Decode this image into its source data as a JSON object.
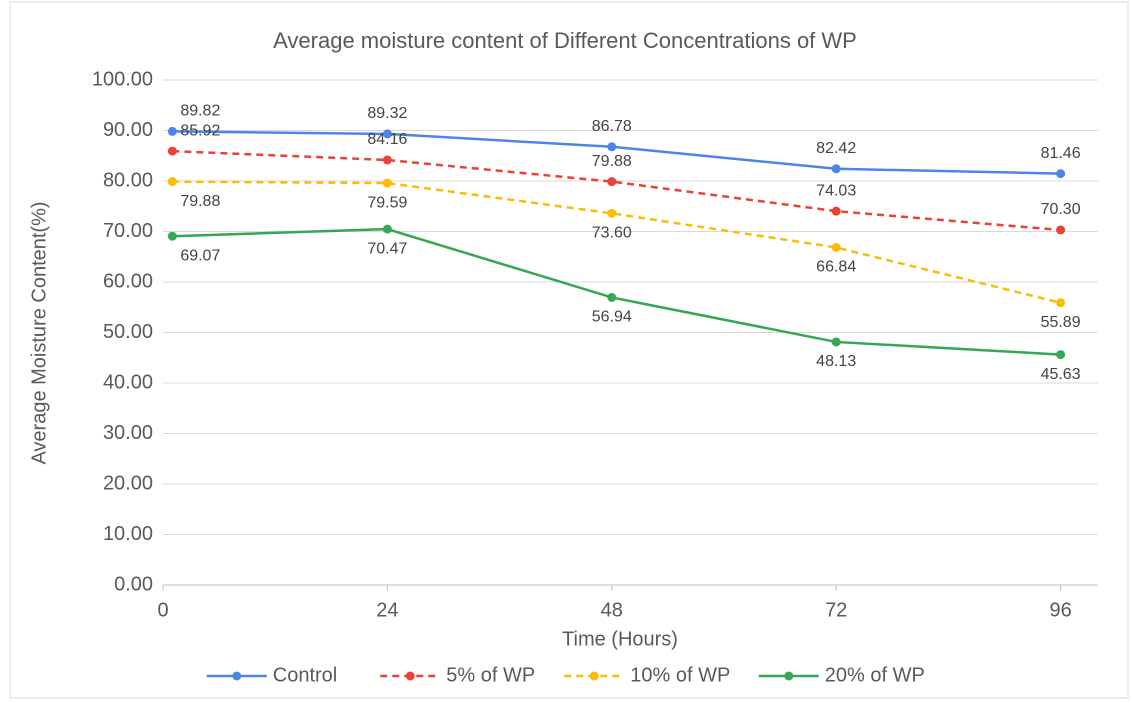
{
  "chart_data": {
    "type": "line",
    "title": "Average moisture content of Different Concentrations of WP",
    "x_label": "Time (Hours)",
    "y_label": "Average Moisture Content(%)",
    "x": [
      1,
      24,
      48,
      72,
      96
    ],
    "xlim": [
      0,
      100
    ],
    "xticks": [
      0,
      24,
      48,
      72,
      96
    ],
    "ylim": [
      0,
      100
    ],
    "yticks": [
      {
        "value": 0,
        "label": "0.00"
      },
      {
        "value": 10,
        "label": "10.00"
      },
      {
        "value": 20,
        "label": "20.00"
      },
      {
        "value": 30,
        "label": "30.00"
      },
      {
        "value": 40,
        "label": "40.00"
      },
      {
        "value": 50,
        "label": "50.00"
      },
      {
        "value": 60,
        "label": "60.00"
      },
      {
        "value": 70,
        "label": "70.00"
      },
      {
        "value": 80,
        "label": "80.00"
      },
      {
        "value": 90,
        "label": "90.00"
      },
      {
        "value": 100,
        "label": "100.00"
      }
    ],
    "grid": true,
    "legend": "bottom",
    "series": [
      {
        "name": "Control",
        "color": "#4a86e8",
        "dashed": false,
        "values": [
          89.82,
          89.32,
          86.78,
          82.42,
          81.46
        ],
        "value_labels": [
          "89.82",
          "89.32",
          "86.78",
          "82.42",
          "81.46"
        ]
      },
      {
        "name": "5% of WP",
        "color": "#ea4335",
        "dashed": true,
        "values": [
          85.92,
          84.16,
          79.88,
          74.03,
          70.3
        ],
        "value_labels": [
          "85.92",
          "84.16",
          "79.88",
          "74.03",
          "70.30"
        ]
      },
      {
        "name": "10% of WP",
        "color": "#fbbc04",
        "dashed": true,
        "values": [
          79.88,
          79.59,
          73.6,
          66.84,
          55.89
        ],
        "value_labels": [
          "79.88",
          "79.59",
          "73.60",
          "66.84",
          "55.89"
        ]
      },
      {
        "name": "20% of WP",
        "color": "#34a853",
        "dashed": false,
        "values": [
          69.07,
          70.47,
          56.94,
          48.13,
          45.63
        ],
        "value_labels": [
          "69.07",
          "70.47",
          "56.94",
          "48.13",
          "45.63"
        ]
      }
    ]
  }
}
